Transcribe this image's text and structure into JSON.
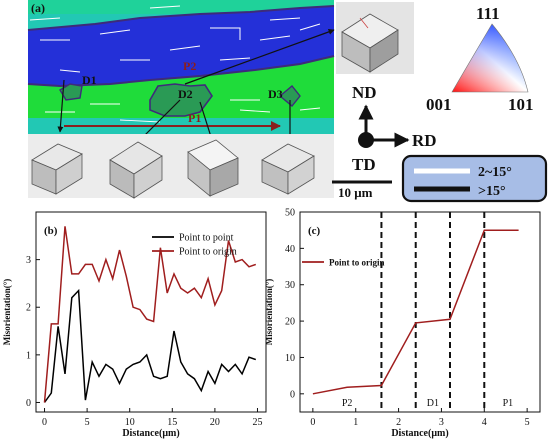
{
  "panel_a": {
    "label": "(a)",
    "points": [
      "P2",
      "D1",
      "D2",
      "D3",
      "P1"
    ],
    "axes": {
      "nd": "ND",
      "rd": "RD",
      "td": "TD"
    },
    "ipf": {
      "top": "111",
      "left": "001",
      "right": "101"
    },
    "scale_bar": "10 μm",
    "legend": {
      "low": "2~15°",
      "high": ">15°"
    },
    "colors": {
      "blue": "#2430d8",
      "green": "#1fdc3a",
      "cyan": "#22c8b4",
      "grain_boundary": "#3e2b7a",
      "arrow": "#8a1f1f"
    }
  },
  "chart_data": [
    {
      "type": "line",
      "label": "(b)",
      "xlabel": "Distance(μm)",
      "ylabel": "Misorientation(°)",
      "xlim": [
        -1,
        26
      ],
      "ylim": [
        -0.2,
        4
      ],
      "xticks": [
        0,
        5,
        10,
        15,
        20,
        25
      ],
      "yticks": [
        0,
        1,
        2,
        3
      ],
      "legend_position": "top-right",
      "series": [
        {
          "name": "Point to point",
          "color": "#000000",
          "x": [
            0,
            0.8,
            1.6,
            2.4,
            3.2,
            4.0,
            4.8,
            5.6,
            6.4,
            7.2,
            8.0,
            8.8,
            9.6,
            10.4,
            11.2,
            12.0,
            12.8,
            13.6,
            14.4,
            15.2,
            16.0,
            16.8,
            17.6,
            18.4,
            19.2,
            20.0,
            20.8,
            21.6,
            22.4,
            23.2,
            24.0,
            24.8
          ],
          "y": [
            0,
            0.2,
            1.6,
            0.6,
            2.2,
            2.35,
            0.05,
            0.85,
            0.55,
            0.8,
            0.7,
            0.4,
            0.7,
            0.8,
            0.85,
            1.0,
            0.55,
            0.5,
            0.55,
            1.5,
            0.85,
            0.6,
            0.5,
            0.25,
            0.65,
            0.4,
            0.8,
            0.65,
            0.8,
            0.6,
            0.95,
            0.9
          ]
        },
        {
          "name": "Point to origin",
          "color": "#a01e1e",
          "x": [
            0,
            0.8,
            1.6,
            2.4,
            3.2,
            4.0,
            4.8,
            5.6,
            6.4,
            7.2,
            8.0,
            8.8,
            9.6,
            10.4,
            11.2,
            12.0,
            12.8,
            13.6,
            14.4,
            15.2,
            16.0,
            16.8,
            17.6,
            18.4,
            19.2,
            20.0,
            20.8,
            21.6,
            22.4,
            23.2,
            24.0,
            24.8
          ],
          "y": [
            0,
            1.65,
            1.65,
            3.7,
            2.7,
            2.7,
            2.9,
            2.9,
            2.55,
            3.0,
            2.6,
            3.2,
            2.65,
            2.0,
            1.95,
            1.75,
            1.7,
            3.25,
            2.3,
            2.7,
            2.4,
            2.3,
            2.4,
            2.2,
            2.6,
            2.05,
            2.35,
            3.4,
            2.95,
            3.0,
            2.85,
            2.9
          ]
        }
      ]
    },
    {
      "type": "line",
      "label": "(c)",
      "xlabel": "Distance(μm)",
      "ylabel": "Misorientation(°)",
      "xlim": [
        -0.3,
        5.3
      ],
      "ylim": [
        -5,
        50
      ],
      "xticks": [
        0,
        1,
        2,
        3,
        4,
        5
      ],
      "yticks": [
        0,
        10,
        20,
        30,
        40,
        50
      ],
      "legend_position": "top-left",
      "series": [
        {
          "name": "Point to origin",
          "color": "#a01e1e",
          "x": [
            0,
            0.8,
            1.6,
            2.4,
            3.2,
            4.0,
            4.8
          ],
          "y": [
            0,
            1.8,
            2.3,
            19.5,
            20.5,
            45,
            45
          ]
        }
      ],
      "dashed_lines_x": [
        1.6,
        2.4,
        3.2,
        4.0
      ],
      "region_labels": [
        {
          "text": "P2",
          "x": 0.8
        },
        {
          "text": "D1",
          "x": 2.8
        },
        {
          "text": "P1",
          "x": 4.55
        }
      ]
    }
  ]
}
